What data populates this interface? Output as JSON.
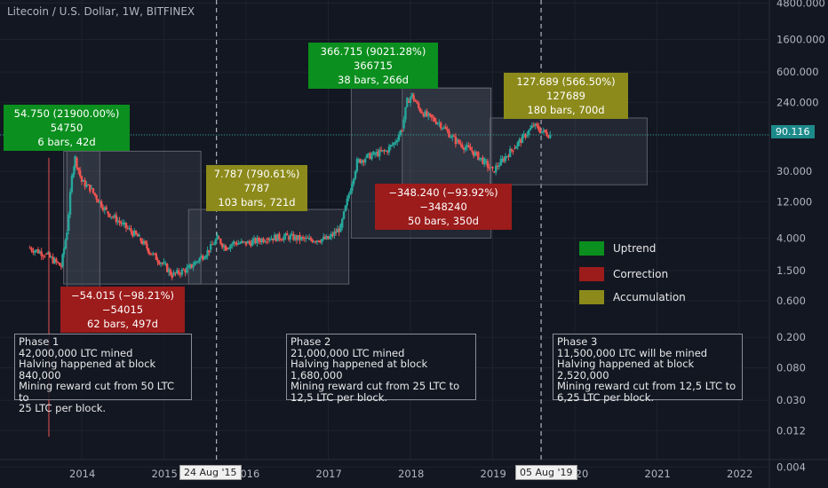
{
  "header": {
    "title": "Litecoin / U.S. Dollar, 1W, BITFINEX"
  },
  "colors": {
    "bg": "#131722",
    "up": "#26a69a",
    "down": "#ef5350",
    "grid": "#1e222d",
    "price_line": "#26a69a"
  },
  "chart_data": {
    "type": "line",
    "title": "Litecoin / U.S. Dollar, 1W, BITFINEX",
    "yscale": "log",
    "ylim": [
      0.005,
      5000
    ],
    "xlim": [
      2013.0,
      2022.6
    ],
    "y_ticks": [
      "4800.000",
      "1600.000",
      "600.000",
      "240.000",
      "90.116",
      "30.000",
      "12.000",
      "4.000",
      "1.500",
      "0.600",
      "0.200",
      "0.080",
      "0.030",
      "0.012",
      "0.004"
    ],
    "x_ticks": [
      "2014",
      "2015",
      "2016",
      "2017",
      "2018",
      "2019",
      "2020",
      "2021",
      "2022"
    ],
    "last_price": "90.116",
    "series": [
      {
        "x": [
          2013.35,
          2013.55,
          2013.75,
          2013.82,
          2013.88,
          2013.92,
          2014.0,
          2014.1,
          2014.3,
          2014.5,
          2014.7,
          2014.85,
          2015.0,
          2015.1,
          2015.3,
          2015.55,
          2015.65,
          2015.75,
          2015.85,
          2016.0,
          2016.25,
          2016.5,
          2016.75,
          2017.0,
          2017.15,
          2017.25,
          2017.35,
          2017.45,
          2017.55,
          2017.7,
          2017.8,
          2017.9,
          2017.96,
          2018.02,
          2018.1,
          2018.2,
          2018.35,
          2018.55,
          2018.75,
          2018.9,
          2019.0,
          2019.1,
          2019.25,
          2019.4,
          2019.5,
          2019.6,
          2019.7
        ],
        "y": [
          3.0,
          2.5,
          1.7,
          5.0,
          25,
          45,
          22,
          18,
          9,
          6,
          4,
          2.5,
          1.8,
          1.3,
          1.6,
          2.8,
          4.0,
          3.0,
          3.5,
          3.4,
          4.0,
          4.2,
          3.8,
          3.9,
          5.5,
          15,
          40,
          45,
          50,
          55,
          70,
          110,
          250,
          300,
          200,
          160,
          130,
          75,
          55,
          40,
          30,
          40,
          60,
          90,
          120,
          100,
          90
        ]
      }
    ],
    "callouts": [
      {
        "text1": "54.750 (21900.00%) 54750",
        "text2": "6 bars, 42d",
        "kind": "uptrend"
      },
      {
        "text1": "366.715 (9021.28%) 366715",
        "text2": "38 bars, 266d",
        "kind": "uptrend"
      },
      {
        "text1": "7.787 (790.61%) 7787",
        "text2": "103 bars, 721d",
        "kind": "accumulation"
      },
      {
        "text1": "127.689 (566.50%) 127689",
        "text2": "180 bars, 700d",
        "kind": "accumulation"
      },
      {
        "text1": "−54.015 (−98.21%) −54015",
        "text2": "62 bars, 497d",
        "kind": "correction"
      },
      {
        "text1": "−348.240 (−93.92%) −348240",
        "text2": "50 bars, 350d",
        "kind": "correction"
      }
    ],
    "legend": {
      "placement": "right",
      "items": [
        {
          "label": "Uptrend",
          "color": "#0b8f1e"
        },
        {
          "label": "Correction",
          "color": "#9c1b1b"
        },
        {
          "label": "Accumulation",
          "color": "#8c8a1a"
        }
      ]
    },
    "phases": [
      {
        "lines": [
          "Phase 1",
          "42,000,000 LTC mined",
          "Halving happened at block 840,000",
          "Mining reward cut from 50 LTC to",
          "25 LTC per block."
        ]
      },
      {
        "lines": [
          "Phase 2",
          "21,000,000 LTC mined",
          "Halving happened at block 1,680,000",
          "Mining reward cut from 25 LTC to",
          "12,5 LTC per block."
        ]
      },
      {
        "lines": [
          "Phase 3",
          "11,500,000 LTC will be mined",
          "Halving happened at block 2,520,000",
          "Mining reward cut from 12,5 LTC to",
          "6,25 LTC per block."
        ]
      }
    ],
    "date_markers": [
      {
        "label": "24 Aug '15",
        "x": 2015.64
      },
      {
        "label": "05 Aug '19",
        "x": 2019.59
      }
    ]
  }
}
